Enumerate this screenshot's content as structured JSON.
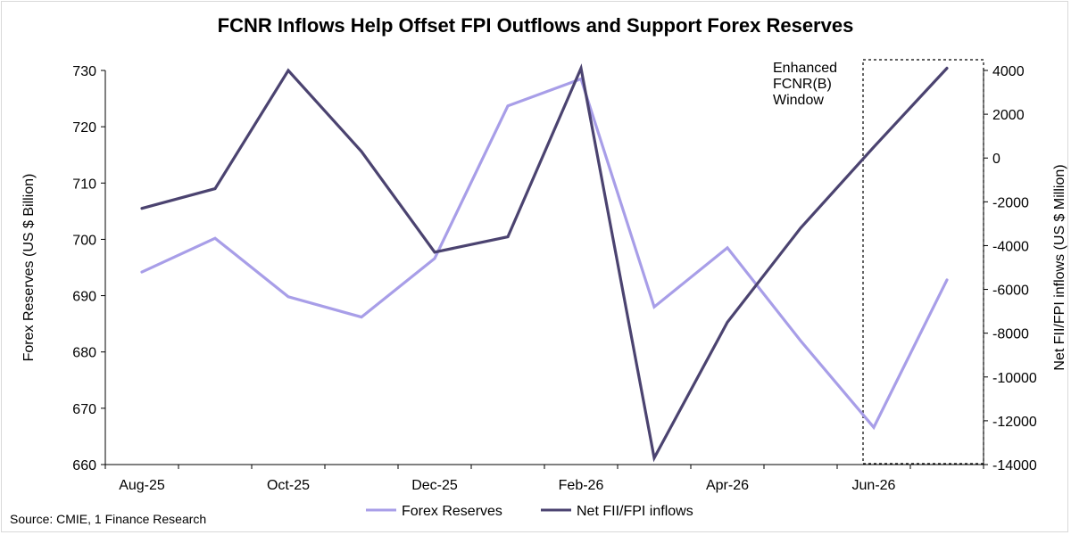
{
  "chart_data": {
    "type": "line",
    "title": "FCNR Inflows Help Offset FPI Outflows and Support Forex Reserves",
    "x": [
      "Aug-25",
      "Sep-25",
      "Oct-25",
      "Nov-25",
      "Dec-25",
      "Jan-26",
      "Feb-26",
      "Mar-26",
      "Apr-26",
      "May-26",
      "Jun-26",
      "Jul-26"
    ],
    "x_tick_labels": [
      "Aug-25",
      "Oct-25",
      "Dec-25",
      "Feb-26",
      "Apr-26",
      "Jun-26"
    ],
    "left_axis": {
      "label": "Forex Reserves (US $ Billion)",
      "ylim": [
        660,
        730
      ],
      "ticks": [
        "660",
        "670",
        "680",
        "690",
        "700",
        "710",
        "720",
        "730"
      ]
    },
    "right_axis": {
      "label": "Net FII/FPI inflows (US $ Million)",
      "ylim": [
        -14000,
        4000
      ],
      "ticks": [
        "-14000",
        "-12000",
        "-10000",
        "-8000",
        "-6000",
        "-4000",
        "-2000",
        "0",
        "2000",
        "4000"
      ]
    },
    "series": [
      {
        "name": "Forex Reserves",
        "axis": "left",
        "color": "#a89ee8",
        "values": [
          694.2,
          700.2,
          689.8,
          686.2,
          696.6,
          723.7,
          728.5,
          688.0,
          698.5,
          682.0,
          666.6,
          692.8
        ]
      },
      {
        "name": "Net FII/FPI inflows",
        "axis": "right",
        "color": "#4b4370",
        "values": [
          -2300,
          -1400,
          4000,
          300,
          -4300,
          -3600,
          4100,
          -13700,
          -7500,
          -3200,
          500,
          4100
        ]
      }
    ],
    "annotation": {
      "lines": [
        "Enhanced",
        "FCNR(B)",
        "Window"
      ]
    },
    "legend_position": "bottom",
    "grid": false,
    "source": "Source: CMIE, 1 Finance Research"
  }
}
